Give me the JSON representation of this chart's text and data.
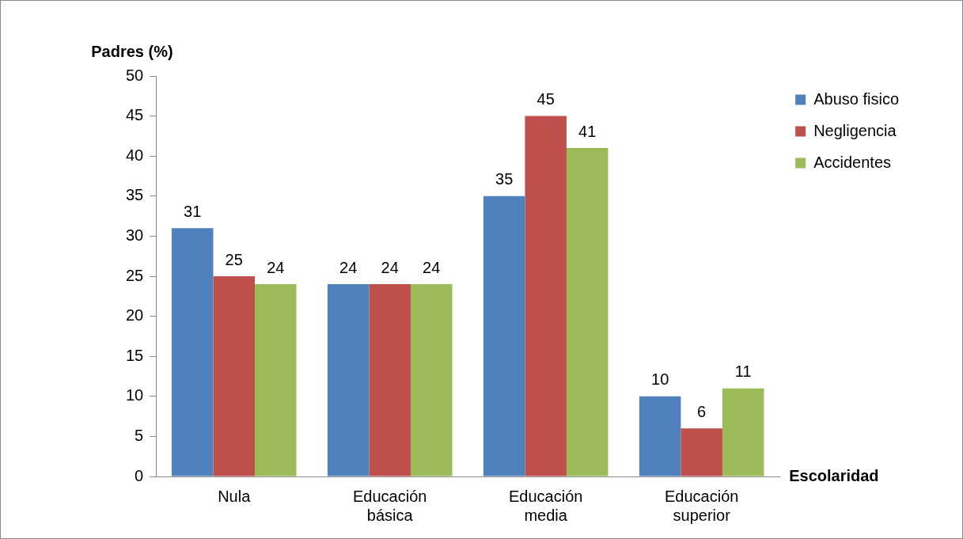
{
  "chart_data": {
    "type": "bar",
    "xlabel": "Escolaridad",
    "ylabel": "Padres (%)",
    "categories": [
      "Nula",
      "Educación básica",
      "Educación media",
      "Educación superior"
    ],
    "series": [
      {
        "name": "Abuso fisico",
        "color": "#4f81bd",
        "values": [
          31,
          24,
          35,
          10
        ]
      },
      {
        "name": "Negligencia",
        "color": "#c0504d",
        "values": [
          25,
          24,
          45,
          6
        ]
      },
      {
        "name": "Accidentes",
        "color": "#9bbb59",
        "values": [
          24,
          24,
          41,
          11
        ]
      }
    ],
    "ylim": [
      0,
      50
    ],
    "yticks": [
      0,
      5,
      10,
      15,
      20,
      25,
      30,
      35,
      40,
      45,
      50
    ],
    "grid": false,
    "legend": "top right",
    "data_labels": true
  }
}
